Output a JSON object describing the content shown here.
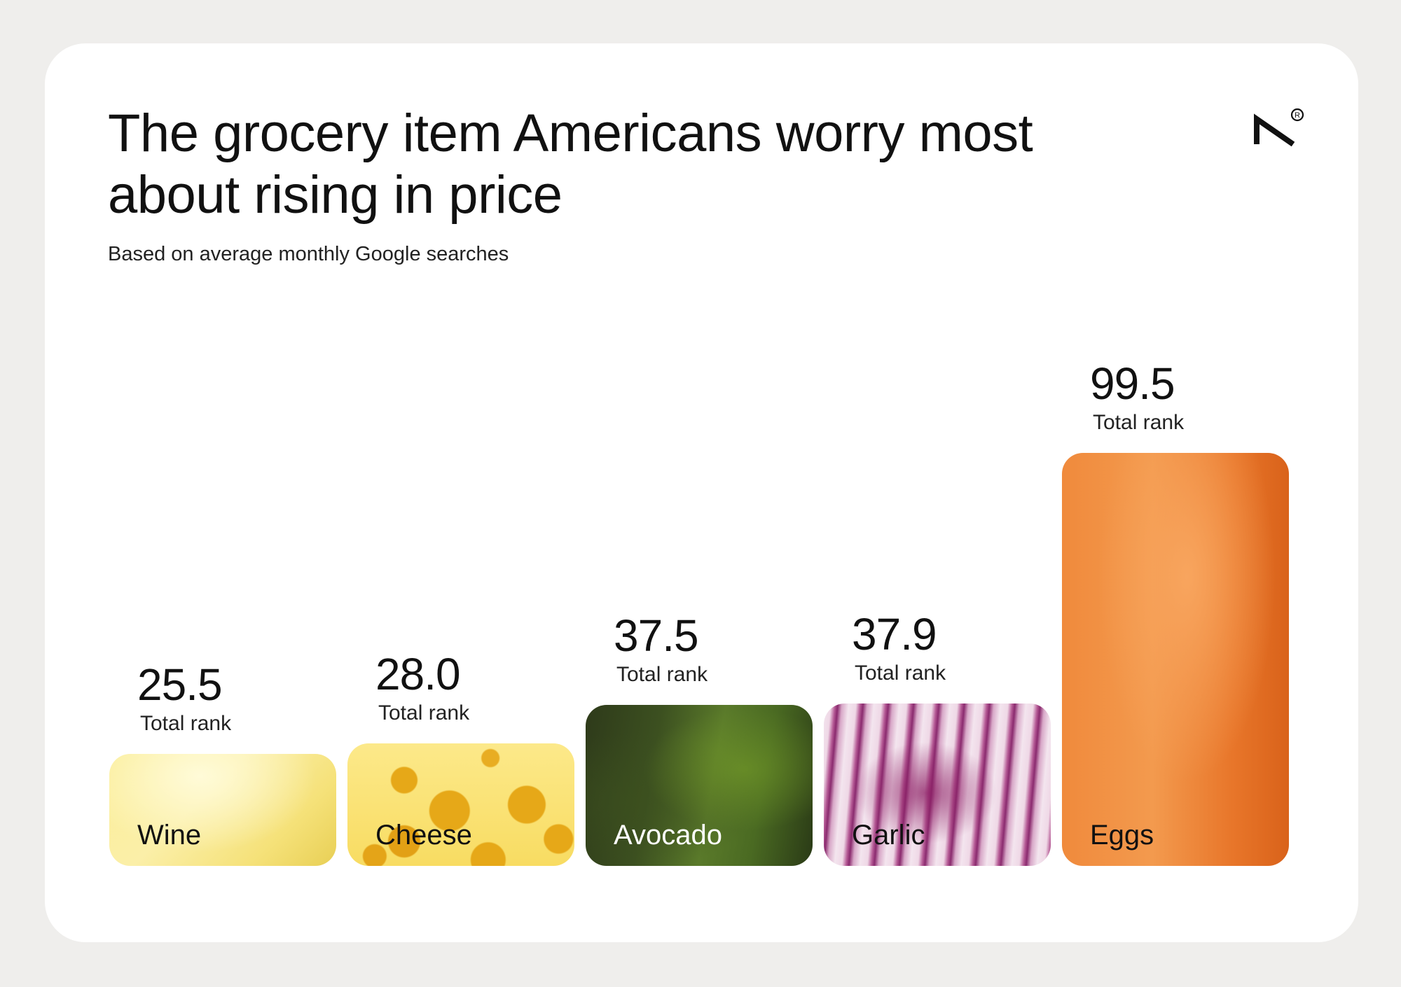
{
  "title": "The grocery item Americans worry most about rising in price",
  "subtitle": "Based on average monthly Google searches",
  "logo": {
    "icon": "seven-logo-icon"
  },
  "colors": {
    "background": "#efeeec",
    "card": "#ffffff",
    "text": "#111111"
  },
  "chart_data": {
    "type": "bar",
    "title": "The grocery item Americans worry most about rising in price",
    "subtitle": "Based on average monthly Google searches",
    "categories": [
      "Wine",
      "Cheese",
      "Avocado",
      "Garlic",
      "Eggs"
    ],
    "values": [
      25.5,
      28.0,
      37.5,
      37.9,
      99.5
    ],
    "value_labels": [
      "25.5",
      "28.0",
      "37.5",
      "37.9",
      "99.5"
    ],
    "value_caption": "Total rank",
    "label_colors": [
      "#111111",
      "#111111",
      "#ffffff",
      "#111111",
      "#111111"
    ],
    "bar_styles": [
      "wine",
      "cheese",
      "avocado",
      "garlic",
      "eggs"
    ],
    "grid": false,
    "legend": "none"
  }
}
